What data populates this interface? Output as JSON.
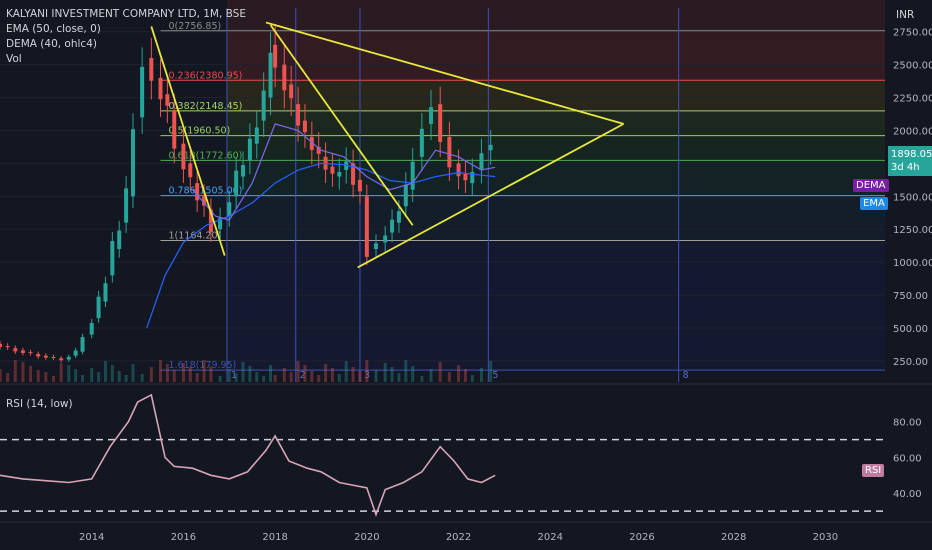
{
  "header": {
    "title": "KALYANI INVESTMENT COMPANY LTD, 1M, BSE",
    "indicators": [
      "EMA (50, close, 0)",
      "DEMA (40, ohlc4)",
      "Vol"
    ],
    "currency": "INR"
  },
  "rsi_panel": {
    "label": "RSI (14, low)",
    "tag": "RSI",
    "y_ticks": [
      "80.00",
      "60.00",
      "40.00"
    ]
  },
  "price_tag": {
    "price": "1898.05",
    "countdown": "3d 4h",
    "color": "#26a69a"
  },
  "tags": {
    "dema": "DEMA",
    "ema": "EMA"
  },
  "colors": {
    "background": "#131722",
    "up": "#26a69a",
    "down": "#ef5350",
    "trendline": "#e8e83a",
    "ema": "#2962ff",
    "dema": "#7b68ee",
    "rsi": "#d9a3b8",
    "cycle_line": "#3f51b5"
  },
  "cycle_labels": [
    "1",
    "2",
    "3",
    "5",
    "8"
  ],
  "chart_data": [
    {
      "type": "candlestick",
      "y_axis": {
        "ticks": [
          250,
          500,
          750,
          1000,
          1250,
          1500,
          1750,
          2000,
          2250,
          2500,
          2750
        ],
        "tick_labels": [
          "250.00",
          "500.00",
          "750.00",
          "1000.00",
          "1250.00",
          "1500.00",
          "1750.00",
          "2000.00",
          "2250.00",
          "2500.00",
          "2750.00"
        ],
        "ylim": [
          90,
          2930
        ]
      },
      "x_axis": {
        "ticks": [
          "2014",
          "2016",
          "2018",
          "2020",
          "2022",
          "2024",
          "2026",
          "2028",
          "2030"
        ],
        "xlim": [
          2012.0,
          2031.3
        ]
      },
      "fibonacci_levels": [
        {
          "label": "0(2756.85)",
          "ratio": 0,
          "value": 2756.85
        },
        {
          "label": "0.236(2380.95)",
          "ratio": 0.236,
          "value": 2380.95
        },
        {
          "label": "0.382(2148.45)",
          "ratio": 0.382,
          "value": 2148.45
        },
        {
          "label": "0.5(1960.50)",
          "ratio": 0.5,
          "value": 1960.5
        },
        {
          "label": "0.618(1772.60)",
          "ratio": 0.618,
          "value": 1772.6
        },
        {
          "label": "0.786(1505.00)",
          "ratio": 0.786,
          "value": 1505.0
        },
        {
          "label": "1(1164.20)",
          "ratio": 1,
          "value": 1164.2
        },
        {
          "label": "1.618(179.95)",
          "ratio": 1.618,
          "value": 179.95
        }
      ],
      "trendlines": [
        {
          "from": [
            2015.3,
            2790
          ],
          "to": [
            2016.9,
            1050
          ]
        },
        {
          "from": [
            2017.9,
            2800
          ],
          "to": [
            2021.0,
            1280
          ]
        },
        {
          "from": [
            2017.8,
            2820
          ],
          "to": [
            2025.6,
            2050
          ]
        },
        {
          "from": [
            2019.8,
            960
          ],
          "to": [
            2025.6,
            2050
          ]
        }
      ],
      "fib_time_zones": [
        2016.95,
        2018.45,
        2019.85,
        2022.65,
        2026.8
      ],
      "price_series": [
        [
          2012.0,
          380
        ],
        [
          2012.5,
          330
        ],
        [
          2013.0,
          290
        ],
        [
          2013.5,
          260
        ],
        [
          2013.8,
          320
        ],
        [
          2014.0,
          450
        ],
        [
          2014.3,
          700
        ],
        [
          2014.6,
          1100
        ],
        [
          2014.9,
          1500
        ],
        [
          2015.1,
          2100
        ],
        [
          2015.3,
          2550
        ],
        [
          2015.5,
          2400
        ],
        [
          2015.8,
          2150
        ],
        [
          2016.0,
          1900
        ],
        [
          2016.3,
          1600
        ],
        [
          2016.6,
          1400
        ],
        [
          2016.8,
          1250
        ],
        [
          2017.0,
          1350
        ],
        [
          2017.3,
          1650
        ],
        [
          2017.6,
          1900
        ],
        [
          2017.9,
          2250
        ],
        [
          2018.0,
          2650
        ],
        [
          2018.2,
          2500
        ],
        [
          2018.5,
          2200
        ],
        [
          2018.8,
          1950
        ],
        [
          2019.1,
          1800
        ],
        [
          2019.4,
          1650
        ],
        [
          2019.7,
          1750
        ],
        [
          2020.0,
          1500
        ],
        [
          2020.2,
          1100
        ],
        [
          2020.4,
          1150
        ],
        [
          2020.7,
          1300
        ],
        [
          2021.0,
          1550
        ],
        [
          2021.2,
          1800
        ],
        [
          2021.4,
          2050
        ],
        [
          2021.6,
          2200
        ],
        [
          2021.8,
          1950
        ],
        [
          2022.0,
          1750
        ],
        [
          2022.3,
          1600
        ],
        [
          2022.5,
          1700
        ],
        [
          2022.7,
          1850
        ],
        [
          2022.8,
          1898.05
        ]
      ],
      "ema_50": [
        [
          2015.2,
          500
        ],
        [
          2015.6,
          900
        ],
        [
          2016.0,
          1150
        ],
        [
          2016.5,
          1280
        ],
        [
          2017.0,
          1350
        ],
        [
          2017.5,
          1450
        ],
        [
          2018.0,
          1600
        ],
        [
          2018.5,
          1700
        ],
        [
          2019.0,
          1750
        ],
        [
          2019.5,
          1740
        ],
        [
          2020.0,
          1700
        ],
        [
          2020.5,
          1620
        ],
        [
          2021.0,
          1600
        ],
        [
          2021.5,
          1650
        ],
        [
          2022.0,
          1680
        ],
        [
          2022.5,
          1660
        ],
        [
          2022.8,
          1650
        ]
      ],
      "dema_40": [
        [
          2016.2,
          1550
        ],
        [
          2016.7,
          1350
        ],
        [
          2017.0,
          1320
        ],
        [
          2017.5,
          1600
        ],
        [
          2018.0,
          2050
        ],
        [
          2018.5,
          2000
        ],
        [
          2019.0,
          1850
        ],
        [
          2019.5,
          1800
        ],
        [
          2020.0,
          1650
        ],
        [
          2020.5,
          1550
        ],
        [
          2021.0,
          1600
        ],
        [
          2021.5,
          1850
        ],
        [
          2022.0,
          1800
        ],
        [
          2022.5,
          1700
        ],
        [
          2022.8,
          1720
        ]
      ]
    },
    {
      "type": "line",
      "name": "RSI (14, low)",
      "y_axis": {
        "ticks": [
          40,
          60,
          80
        ],
        "ylim": [
          25,
          100
        ]
      },
      "reference_lines": [
        70,
        30
      ],
      "x": [
        2012.0,
        2012.5,
        2013.0,
        2013.5,
        2014.0,
        2014.4,
        2014.8,
        2015.0,
        2015.3,
        2015.6,
        2015.8,
        2016.2,
        2016.6,
        2017.0,
        2017.4,
        2017.8,
        2018.0,
        2018.3,
        2018.7,
        2019.0,
        2019.4,
        2019.8,
        2020.0,
        2020.2,
        2020.4,
        2020.8,
        2021.2,
        2021.6,
        2021.9,
        2022.2,
        2022.5,
        2022.8
      ],
      "values": [
        50,
        48,
        47,
        46,
        48,
        66,
        80,
        91,
        95,
        60,
        55,
        54,
        50,
        48,
        52,
        64,
        72,
        58,
        54,
        52,
        46,
        44,
        43,
        28,
        42,
        46,
        52,
        66,
        58,
        48,
        46,
        50
      ]
    }
  ]
}
